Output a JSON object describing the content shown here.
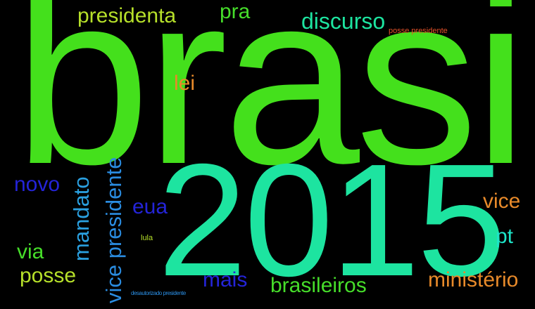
{
  "words": {
    "brasil": {
      "text": "brasil",
      "color": "#44e01c"
    },
    "y2015": {
      "text": "2015",
      "color": "#1de4a0"
    },
    "presidenta": {
      "text": "presidenta",
      "color": "#b6e02a"
    },
    "pra": {
      "text": "pra",
      "color": "#46dd2a"
    },
    "discurso": {
      "text": "discurso",
      "color": "#1de4a0"
    },
    "posse_presidente": {
      "text": "posse presidente",
      "color": "#e8522a"
    },
    "lei": {
      "text": "lei",
      "color": "#e88a2a"
    },
    "novo": {
      "text": "novo",
      "color": "#2424d8"
    },
    "mandato": {
      "text": "mandato",
      "color": "#2aa0e0"
    },
    "vice_presidente": {
      "text": "vice presidente",
      "color": "#2a8ce0"
    },
    "eua": {
      "text": "eua",
      "color": "#2424d8"
    },
    "vice": {
      "text": "vice",
      "color": "#e88a2a"
    },
    "pt": {
      "text": "pt",
      "color": "#1de4c8"
    },
    "via": {
      "text": "via",
      "color": "#46dd2a"
    },
    "posse": {
      "text": "posse",
      "color": "#b6e02a"
    },
    "lula": {
      "text": "lula",
      "color": "#b6e02a"
    },
    "mais": {
      "text": "mais",
      "color": "#2424d8"
    },
    "brasileiros": {
      "text": "brasileiros",
      "color": "#46dd2a"
    },
    "ministerio": {
      "text": "ministério",
      "color": "#e88a2a"
    },
    "desautorizado_presidente": {
      "text": "desautorizado presidente",
      "color": "#2a8ce0"
    }
  }
}
